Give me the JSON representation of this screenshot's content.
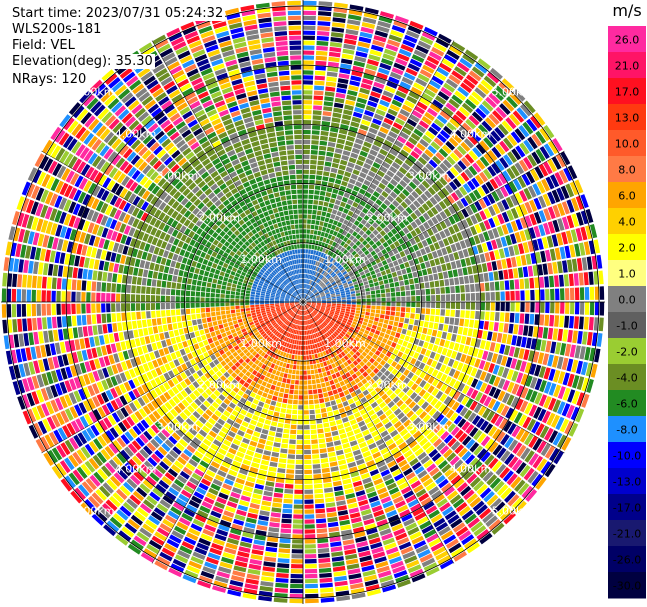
{
  "header": {
    "start_time": "Start time: 2023/07/31 05:24:32",
    "instrument": "WLS200s-181",
    "field": "Field: VEL",
    "elevation": "Elevation(deg): 35.30",
    "nrays": "NRays: 120"
  },
  "colorbar": {
    "unit": "m/s",
    "ticks": [
      "26.0",
      "21.0",
      "17.0",
      "13.0",
      "10.0",
      "8.0",
      "6.0",
      "4.0",
      "2.0",
      "1.0",
      "0.0",
      "-1.0",
      "-2.0",
      "-4.0",
      "-6.0",
      "-8.0",
      "-10.0",
      "-13.0",
      "-17.0",
      "-21.0",
      "-26.0",
      "-30.0"
    ],
    "colors": [
      "#ff2aa0",
      "#ff1466",
      "#ff1020",
      "#ff3a10",
      "#ff5a2a",
      "#ff7a45",
      "#ffa500",
      "#ffd000",
      "#ffff00",
      "#ffff80",
      "#808080",
      "#606060",
      "#9acd32",
      "#6b8e23",
      "#228b22",
      "#1e90ff",
      "#0000ff",
      "#0000cd",
      "#00008b",
      "#191970",
      "#000066",
      "#000040"
    ]
  },
  "chart_data": {
    "type": "heatmap",
    "title": "",
    "nrays": 120,
    "range_ring_labels": [
      "1.00km",
      "2.00km",
      "3.00km",
      "4.00km",
      "5.00km"
    ],
    "range_rings_km": [
      1,
      2,
      3,
      4,
      5
    ],
    "max_range_km": 5.1,
    "vrange": [
      -30,
      26
    ],
    "colors": {
      "near_north": "#1e6fd0",
      "mid_north": "#228b22",
      "outer_north": "#6b8e23",
      "near_south": "#ff3a10",
      "mid_south": "#ffa500",
      "outer_south": "#ffff00",
      "zero": "#808080",
      "noise": [
        "#ff2aa0",
        "#ff1466",
        "#ff1020",
        "#ffd000",
        "#ffff00",
        "#808080",
        "#9acd32",
        "#6b8e23",
        "#228b22",
        "#1e90ff",
        "#0000ff",
        "#00008b",
        "#000040",
        "#ffa500",
        "#ff7a45"
      ]
    }
  }
}
